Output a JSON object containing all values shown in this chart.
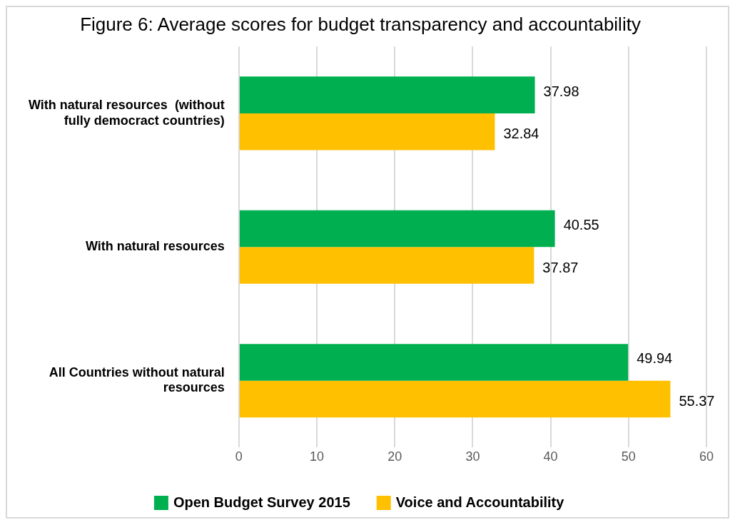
{
  "chart_data": {
    "type": "bar",
    "orientation": "horizontal",
    "title": "Figure 6: Average scores for budget transparency and accountability",
    "categories": [
      "With natural resources  (without fully democract countries)",
      "With natural resources",
      "All Countries without natural resources"
    ],
    "series": [
      {
        "name": "Open Budget Survey 2015",
        "color": "#00b050",
        "values": [
          37.98,
          40.55,
          49.94
        ]
      },
      {
        "name": "Voice and Accountability",
        "color": "#ffc000",
        "values": [
          32.84,
          37.87,
          55.37
        ]
      }
    ],
    "xlim": [
      0,
      60
    ],
    "xticks": [
      0,
      10,
      20,
      30,
      40,
      50,
      60
    ],
    "grid": "x",
    "legend": "bottom",
    "data_labels": true
  }
}
